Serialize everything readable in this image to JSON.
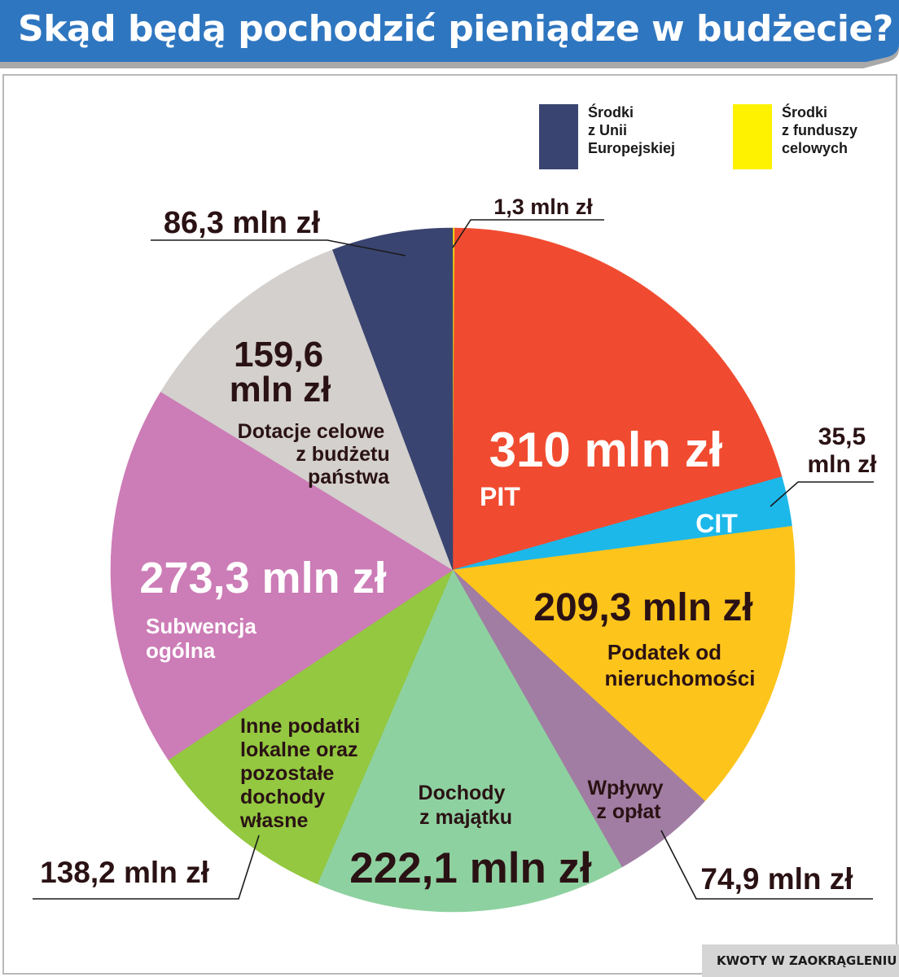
{
  "title": "Skąd będą pochodzić pieniądze w budżecie?",
  "footnote": "KWOTY W ZAOKRĄGLENIU",
  "legend": [
    {
      "lines": [
        "Środki",
        "z Unii",
        "Europejskiej"
      ],
      "color": "#3a4470"
    },
    {
      "lines": [
        "Środki",
        "z funduszy",
        "celowych"
      ],
      "color": "#fff200"
    }
  ],
  "chart_data": {
    "type": "pie",
    "unit": "mln zł",
    "slices": [
      {
        "label": "Środki z funduszy celowych",
        "value": 1.3,
        "value_label": "1,3 mln zł",
        "color": "#fff200"
      },
      {
        "label": "PIT",
        "value": 310.0,
        "value_label": "310 mln zł",
        "color": "#f04b30"
      },
      {
        "label": "CIT",
        "value": 35.5,
        "value_label": "35,5 mln zł",
        "color": "#1cb8ea"
      },
      {
        "label": "Podatek od nieruchomości",
        "value": 209.3,
        "value_label": "209,3 mln zł",
        "color": "#fdc41c"
      },
      {
        "label": "Wpływy z opłat",
        "value": 74.9,
        "value_label": "74,9 mln zł",
        "color": "#a17da3"
      },
      {
        "label": "Dochody z majątku",
        "value": 222.1,
        "value_label": "222,1 mln zł",
        "color": "#8ed1a0"
      },
      {
        "label": "Inne podatki lokalne oraz pozostałe dochody własne",
        "value": 138.2,
        "value_label": "138,2 mln zł",
        "color": "#93c840"
      },
      {
        "label": "Subwencja ogólna",
        "value": 273.3,
        "value_label": "273,3 mln zł",
        "color": "#cc7cb6"
      },
      {
        "label": "Dotacje celowe z budżetu państwa",
        "value": 159.6,
        "value_label": "159,6 mln zł",
        "color": "#d3d0cd"
      },
      {
        "label": "Środki z Unii Europejskiej",
        "value": 86.3,
        "value_label": "86,3 mln zł",
        "color": "#3a4470"
      }
    ]
  },
  "texts": {
    "fund_value": "1,3 mln zł",
    "pit_value": "310 mln zł",
    "pit_name": "PIT",
    "cit_value_1": "35,5",
    "cit_value_2": "mln zł",
    "cit_name": "CIT",
    "prop_value": "209,3 mln zł",
    "prop_name_1": "Podatek od",
    "prop_name_2": "nieruchomości",
    "fees_name_1": "Wpływy",
    "fees_name_2": "z opłat",
    "fees_value": "74,9 mln zł",
    "assets_name_1": "Dochody",
    "assets_name_2": "z majątku",
    "assets_value": "222,1 mln zł",
    "other_name_1": "Inne podatki",
    "other_name_2": "lokalne oraz",
    "other_name_3": "pozostałe",
    "other_name_4": "dochody",
    "other_name_5": "własne",
    "other_value": "138,2 mln zł",
    "sub_value": "273,3 mln zł",
    "sub_name_1": "Subwencja",
    "sub_name_2": "ogólna",
    "grant_value_1": "159,6",
    "grant_value_2": "mln zł",
    "grant_name_1": "Dotacje celowe",
    "grant_name_2": "z budżetu",
    "grant_name_3": "państwa",
    "eu_value": "86,3 mln zł"
  }
}
